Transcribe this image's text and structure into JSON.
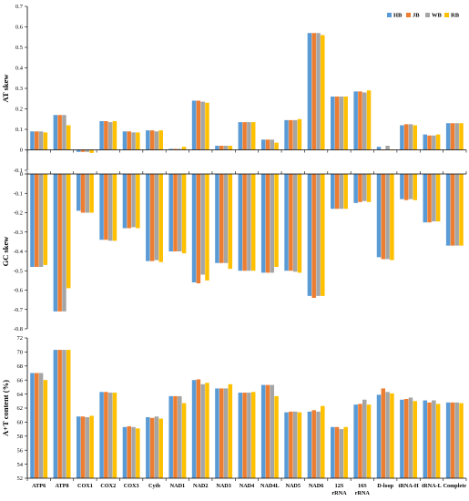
{
  "colors": {
    "HB": "#5B9BD5",
    "JB": "#ED7D31",
    "WB": "#A5A5A5",
    "RB": "#FFC000"
  },
  "chart_data": [
    {
      "type": "bar",
      "panel": "at",
      "ylabel": "AT skew",
      "ylim": [
        -0.1,
        0.7
      ],
      "yticks": [
        "-0.1",
        "0",
        "0.1",
        "0.2",
        "0.3",
        "0.4",
        "0.5",
        "0.6",
        "0.7"
      ],
      "legend": "top-right",
      "categories": [
        "ATP6",
        "ATP8",
        "COX1",
        "COX2",
        "COX3",
        "Cytb",
        "NAD1",
        "NAD2",
        "NAD3",
        "NAD4",
        "NAD4L",
        "NAD5",
        "NAD6",
        "12S rRNA",
        "16S rRNA",
        "D-loop",
        "tRNA-H",
        "tRNA-L",
        "Complete"
      ],
      "series": [
        {
          "name": "HB",
          "values": [
            0.09,
            0.17,
            -0.01,
            0.14,
            0.09,
            0.095,
            0.005,
            0.24,
            0.02,
            0.135,
            0.05,
            0.145,
            0.57,
            0.26,
            0.285,
            0.015,
            0.12,
            0.075,
            0.13
          ]
        },
        {
          "name": "JB",
          "values": [
            0.09,
            0.17,
            -0.01,
            0.14,
            0.09,
            0.095,
            0.005,
            0.24,
            0.02,
            0.135,
            0.05,
            0.145,
            0.57,
            0.26,
            0.285,
            0.0,
            0.125,
            0.07,
            0.13
          ]
        },
        {
          "name": "WB",
          "values": [
            0.09,
            0.17,
            -0.01,
            0.135,
            0.085,
            0.09,
            0.005,
            0.235,
            0.02,
            0.135,
            0.05,
            0.145,
            0.57,
            0.26,
            0.28,
            0.02,
            0.125,
            0.07,
            0.13
          ]
        },
        {
          "name": "RB",
          "values": [
            0.085,
            0.12,
            -0.015,
            0.14,
            0.085,
            0.095,
            0.015,
            0.23,
            0.02,
            0.135,
            0.035,
            0.15,
            0.56,
            0.26,
            0.29,
            0.0,
            0.12,
            0.075,
            0.13
          ]
        }
      ]
    },
    {
      "type": "bar",
      "panel": "gc",
      "ylabel": "GC skew",
      "ylim": [
        -0.8,
        0
      ],
      "yticks": [
        "-0.8",
        "-0.7",
        "-0.6",
        "-0.5",
        "-0.4",
        "-0.3",
        "-0.2",
        "-0.1",
        "0"
      ],
      "categories": [
        "ATP6",
        "ATP8",
        "COX1",
        "COX2",
        "COX3",
        "Cytb",
        "NAD1",
        "NAD2",
        "NAD3",
        "NAD4",
        "NAD4L",
        "NAD5",
        "NAD6",
        "12S rRNA",
        "16S rRNA",
        "D-loop",
        "tRNA-H",
        "tRNA-L",
        "Complete"
      ],
      "series": [
        {
          "name": "HB",
          "values": [
            -0.48,
            -0.71,
            -0.19,
            -0.34,
            -0.28,
            -0.45,
            -0.4,
            -0.56,
            -0.46,
            -0.5,
            -0.51,
            -0.5,
            -0.63,
            -0.18,
            -0.15,
            -0.43,
            -0.13,
            -0.25,
            -0.37
          ]
        },
        {
          "name": "JB",
          "values": [
            -0.48,
            -0.71,
            -0.2,
            -0.34,
            -0.28,
            -0.45,
            -0.4,
            -0.565,
            -0.46,
            -0.5,
            -0.51,
            -0.5,
            -0.64,
            -0.18,
            -0.145,
            -0.44,
            -0.135,
            -0.25,
            -0.37
          ]
        },
        {
          "name": "WB",
          "values": [
            -0.48,
            -0.71,
            -0.2,
            -0.345,
            -0.275,
            -0.445,
            -0.4,
            -0.52,
            -0.46,
            -0.5,
            -0.51,
            -0.505,
            -0.63,
            -0.18,
            -0.14,
            -0.44,
            -0.13,
            -0.245,
            -0.37
          ]
        },
        {
          "name": "RB",
          "values": [
            -0.47,
            -0.59,
            -0.2,
            -0.345,
            -0.28,
            -0.455,
            -0.41,
            -0.55,
            -0.49,
            -0.5,
            -0.48,
            -0.51,
            -0.63,
            -0.18,
            -0.145,
            -0.445,
            -0.135,
            -0.245,
            -0.37
          ]
        }
      ]
    },
    {
      "type": "bar",
      "panel": "content",
      "ylabel": "A+T content (%)",
      "ylim": [
        52,
        72
      ],
      "yticks": [
        "52",
        "54",
        "56",
        "58",
        "60",
        "62",
        "64",
        "66",
        "68",
        "70",
        "72"
      ],
      "categories": [
        "ATP6",
        "ATP8",
        "COX1",
        "COX2",
        "COX3",
        "Cytb",
        "NAD1",
        "NAD2",
        "NAD3",
        "NAD4",
        "NAD4L",
        "NAD5",
        "NAD6",
        "12S rRNA",
        "16S rRNA",
        "D-loop",
        "tRNA-H",
        "tRNA-L",
        "Complete"
      ],
      "category_labels": [
        [
          "ATP6"
        ],
        [
          "ATP8"
        ],
        [
          "COX1"
        ],
        [
          "COX2"
        ],
        [
          "COX3"
        ],
        [
          "Cytb"
        ],
        [
          "NAD1"
        ],
        [
          "NAD2"
        ],
        [
          "NAD3"
        ],
        [
          "NAD4"
        ],
        [
          "NAD4L"
        ],
        [
          "NAD5"
        ],
        [
          "NAD6"
        ],
        [
          "12S",
          "rRNA"
        ],
        [
          "16S",
          "rRNA"
        ],
        [
          "D-loop"
        ],
        [
          "tRNA-H"
        ],
        [
          "tRNA-L"
        ],
        [
          "Complete"
        ]
      ],
      "series": [
        {
          "name": "HB",
          "values": [
            67.0,
            70.3,
            60.8,
            64.3,
            59.3,
            60.7,
            63.7,
            66.0,
            64.8,
            64.2,
            65.3,
            61.4,
            61.5,
            59.3,
            62.5,
            63.9,
            63.2,
            63.1,
            62.8
          ]
        },
        {
          "name": "JB",
          "values": [
            67.0,
            70.3,
            60.8,
            64.3,
            59.4,
            60.6,
            63.7,
            66.1,
            64.8,
            64.2,
            65.3,
            61.5,
            61.7,
            59.3,
            62.6,
            64.8,
            63.3,
            62.8,
            62.8
          ]
        },
        {
          "name": "WB",
          "values": [
            67.0,
            70.3,
            60.7,
            64.2,
            59.3,
            60.8,
            63.7,
            65.4,
            64.8,
            64.2,
            65.3,
            61.5,
            61.5,
            59.0,
            63.2,
            64.3,
            63.5,
            63.1,
            62.8
          ]
        },
        {
          "name": "RB",
          "values": [
            66.0,
            70.3,
            60.9,
            64.2,
            59.1,
            60.5,
            62.7,
            65.6,
            65.4,
            64.3,
            63.7,
            61.4,
            62.3,
            59.3,
            62.5,
            64.1,
            63.0,
            62.6,
            62.7
          ]
        }
      ]
    }
  ]
}
